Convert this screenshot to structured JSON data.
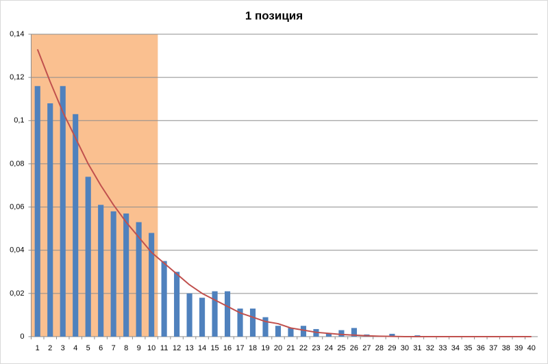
{
  "chart_data": {
    "type": "bar",
    "title": "1 позиция",
    "categories": [
      1,
      2,
      3,
      4,
      5,
      6,
      7,
      8,
      9,
      10,
      11,
      12,
      13,
      14,
      15,
      16,
      17,
      18,
      19,
      20,
      21,
      22,
      23,
      24,
      25,
      26,
      27,
      28,
      29,
      30,
      31,
      32,
      33,
      34,
      35,
      36,
      37,
      38,
      39,
      40
    ],
    "series": [
      {
        "type": "bar",
        "color": "#4f81bd",
        "values": [
          0.116,
          0.108,
          0.116,
          0.103,
          0.074,
          0.061,
          0.058,
          0.057,
          0.053,
          0.048,
          0.035,
          0.03,
          0.02,
          0.018,
          0.021,
          0.021,
          0.013,
          0.013,
          0.009,
          0.005,
          0.004,
          0.005,
          0.0035,
          0.0015,
          0.003,
          0.004,
          0.001,
          0.0003,
          0.0013,
          0.0003,
          0.0006,
          0,
          0,
          0,
          0,
          0,
          0,
          0,
          0,
          0
        ]
      },
      {
        "type": "line",
        "color": "#c0504d",
        "values": [
          0.133,
          0.118,
          0.104,
          0.092,
          0.08,
          0.07,
          0.061,
          0.053,
          0.046,
          0.039,
          0.034,
          0.029,
          0.024,
          0.02,
          0.017,
          0.014,
          0.011,
          0.009,
          0.007,
          0.006,
          0.004,
          0.003,
          0.002,
          0.0015,
          0.001,
          0.0007,
          0.0004,
          0.0002,
          0.0001,
          0,
          0,
          0,
          0,
          0,
          0,
          0,
          0,
          0,
          0,
          0
        ]
      }
    ],
    "highlight": {
      "categories": [
        1,
        10
      ],
      "color": "#fac090"
    },
    "ylim": [
      0,
      0.14
    ],
    "yticks": [
      0,
      {
        "value": 0.02,
        "label": "0,02"
      },
      {
        "value": 0.04,
        "label": "0,04"
      },
      {
        "value": 0.06,
        "label": "0,06"
      },
      {
        "value": 0.08,
        "label": "0,08"
      },
      {
        "value": 0.1,
        "label": "0,1"
      },
      {
        "value": 0.12,
        "label": "0,12"
      },
      {
        "value": 0.14,
        "label": "0,14"
      }
    ],
    "grid": true
  }
}
